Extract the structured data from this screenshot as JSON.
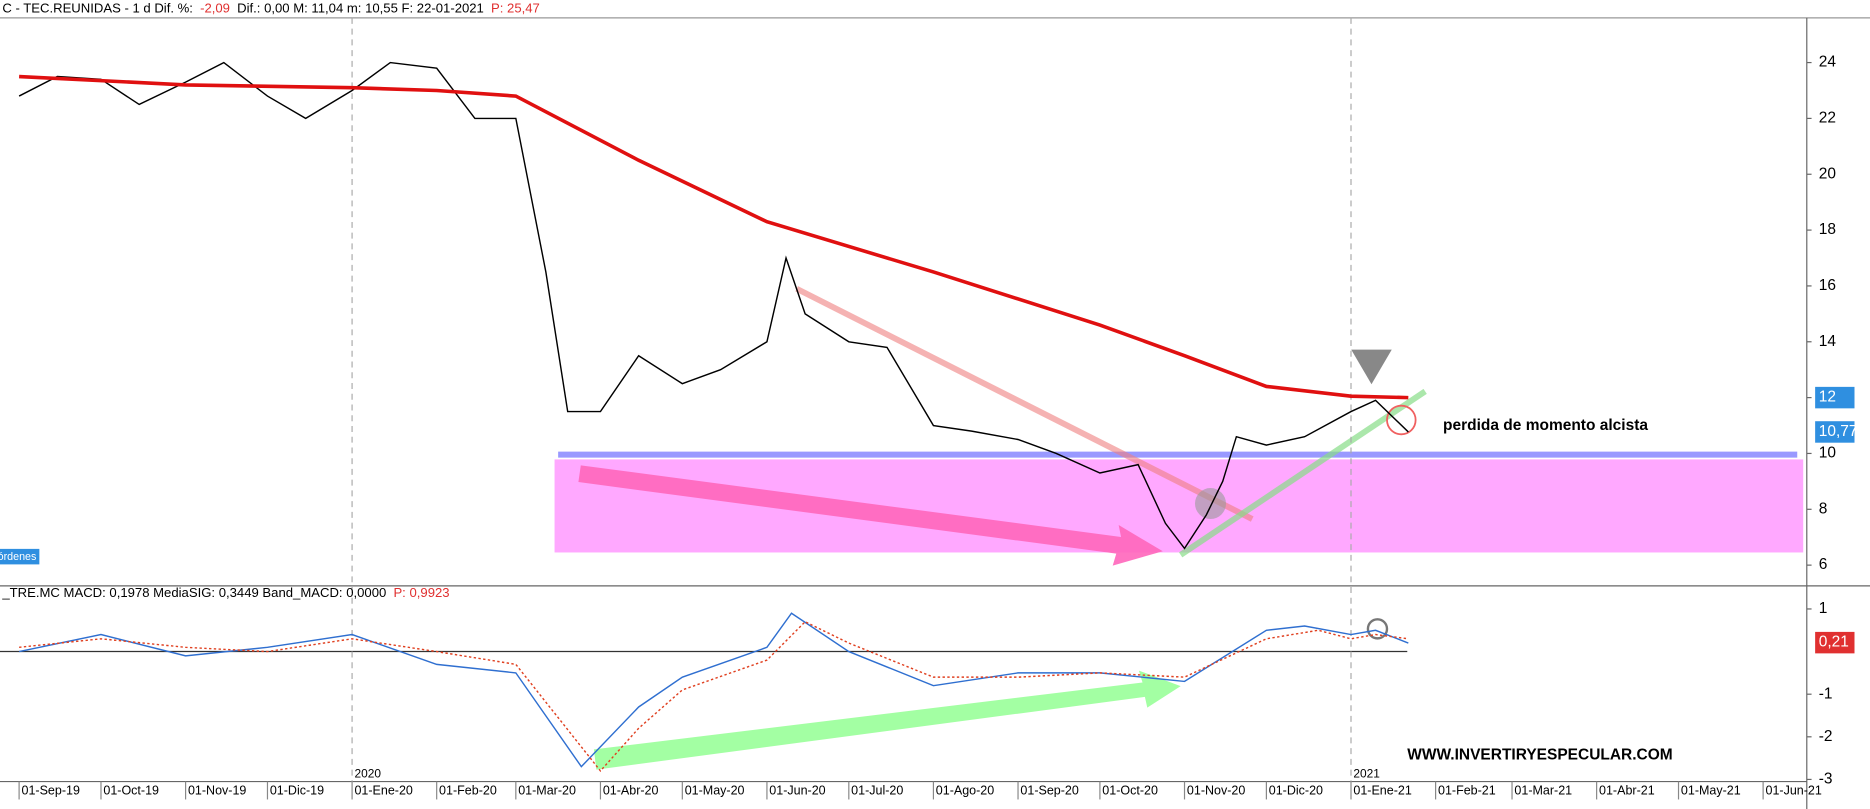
{
  "chart_data": [
    {
      "type": "line",
      "header": [
        {
          "text": "C - TEC.REUNIDAS -  1 d  Dif. %:",
          "color": "#000000"
        },
        {
          "text": "-2,09",
          "color": "#e03030"
        },
        {
          "text": "Dif.: 0,00  M: 11,04  m: 10,55  F: 22-01-2021",
          "color": "#000000"
        },
        {
          "text": "P: 25,47",
          "color": "#e03030"
        }
      ],
      "xlim": [
        "2019-08-25",
        "2021-06-17"
      ],
      "ylim": [
        5.3,
        25.6
      ],
      "yticks": [
        6,
        8,
        10,
        12,
        14,
        16,
        18,
        20,
        22,
        24
      ],
      "series": [
        {
          "color": "#000000",
          "x": [
            "2019-09-01",
            "2019-09-15",
            "2019-10-01",
            "2019-10-15",
            "2019-11-01",
            "2019-11-15",
            "2019-12-01",
            "2019-12-15",
            "2020-01-01",
            "2020-01-15",
            "2020-02-01",
            "2020-02-15",
            "2020-03-01",
            "2020-03-08",
            "2020-03-12",
            "2020-03-20",
            "2020-04-01",
            "2020-04-15",
            "2020-05-01",
            "2020-05-15",
            "2020-06-01",
            "2020-06-08",
            "2020-06-15",
            "2020-07-01",
            "2020-07-15",
            "2020-08-01",
            "2020-08-15",
            "2020-09-01",
            "2020-09-15",
            "2020-10-01",
            "2020-10-15",
            "2020-10-25",
            "2020-11-01",
            "2020-11-09",
            "2020-11-15",
            "2020-11-20",
            "2020-12-01",
            "2020-12-15",
            "2021-01-01",
            "2021-01-10",
            "2021-01-22"
          ],
          "values": [
            22.8,
            23.5,
            23.4,
            22.5,
            23.3,
            24.0,
            22.8,
            22.0,
            23.0,
            24.0,
            23.8,
            22.0,
            22.0,
            18.5,
            16.5,
            11.5,
            11.5,
            13.5,
            12.5,
            13.0,
            14.0,
            17.0,
            15.0,
            14.0,
            13.8,
            11.0,
            10.8,
            10.5,
            10.0,
            9.3,
            9.6,
            7.5,
            6.6,
            7.8,
            9.0,
            10.6,
            10.3,
            10.6,
            11.5,
            11.9,
            10.77
          ]
        },
        {
          "color": "#e01010",
          "x": [
            "2019-09-01",
            "2019-11-01",
            "2020-01-01",
            "2020-02-01",
            "2020-03-01",
            "2020-04-15",
            "2020-06-01",
            "2020-08-01",
            "2020-10-01",
            "2020-11-01",
            "2020-12-01",
            "2021-01-01",
            "2021-01-22"
          ],
          "values": [
            23.5,
            23.2,
            23.1,
            23.0,
            22.8,
            20.5,
            18.3,
            16.5,
            14.6,
            13.5,
            12.4,
            12.05,
            12.0
          ]
        }
      ],
      "price_labels": [
        {
          "value": 12,
          "label": "12",
          "color": "#2f8fe0"
        },
        {
          "value": 10.77,
          "label": "10,77",
          "color": "#2f8fe0"
        }
      ],
      "year_labels": [
        {
          "value": "2020-01-01",
          "label": "2020"
        },
        {
          "value": "2021-01-01",
          "label": "2021"
        }
      ],
      "annotation": "perdida de momento alcista",
      "tag": "órdenes"
    },
    {
      "type": "line",
      "header": [
        {
          "text": "_TRE.MC  MACD: 0,1978  MediaSIG: 0,3449  Band_MACD: 0,0000",
          "color": "#000000"
        },
        {
          "text": "P: 0,9923",
          "color": "#e03030"
        }
      ],
      "xlim": [
        "2019-08-25",
        "2021-06-17"
      ],
      "ylim": [
        -3.05,
        1.15
      ],
      "yticks": [
        -3,
        -2,
        -1,
        1
      ],
      "xticks": [
        {
          "value": "2019-09-01",
          "label": "01-Sep-19"
        },
        {
          "value": "2019-10-01",
          "label": "01-Oct-19"
        },
        {
          "value": "2019-11-01",
          "label": "01-Nov-19"
        },
        {
          "value": "2019-12-01",
          "label": "01-Dic-19"
        },
        {
          "value": "2020-01-01",
          "label": "01-Ene-20"
        },
        {
          "value": "2020-02-01",
          "label": "01-Feb-20"
        },
        {
          "value": "2020-03-01",
          "label": "01-Mar-20"
        },
        {
          "value": "2020-04-01",
          "label": "01-Abr-20"
        },
        {
          "value": "2020-05-01",
          "label": "01-May-20"
        },
        {
          "value": "2020-06-01",
          "label": "01-Jun-20"
        },
        {
          "value": "2020-07-01",
          "label": "01-Jul-20"
        },
        {
          "value": "2020-08-01",
          "label": "01-Ago-20"
        },
        {
          "value": "2020-09-01",
          "label": "01-Sep-20"
        },
        {
          "value": "2020-10-01",
          "label": "01-Oct-20"
        },
        {
          "value": "2020-11-01",
          "label": "01-Nov-20"
        },
        {
          "value": "2020-12-01",
          "label": "01-Dic-20"
        },
        {
          "value": "2021-01-01",
          "label": "01-Ene-21"
        },
        {
          "value": "2021-02-01",
          "label": "01-Feb-21"
        },
        {
          "value": "2021-03-01",
          "label": "01-Mar-21"
        },
        {
          "value": "2021-04-01",
          "label": "01-Abr-21"
        },
        {
          "value": "2021-05-01",
          "label": "01-May-21"
        },
        {
          "value": "2021-06-01",
          "label": "01-Jun-21"
        }
      ],
      "series": [
        {
          "color": "#2f6fd0",
          "dash": false,
          "x": [
            "2019-09-01",
            "2019-10-01",
            "2019-11-01",
            "2019-12-01",
            "2020-01-01",
            "2020-02-01",
            "2020-03-01",
            "2020-03-25",
            "2020-04-15",
            "2020-05-01",
            "2020-06-01",
            "2020-06-10",
            "2020-07-01",
            "2020-08-01",
            "2020-09-01",
            "2020-10-01",
            "2020-11-01",
            "2020-12-01",
            "2020-12-15",
            "2021-01-01",
            "2021-01-10",
            "2021-01-22"
          ],
          "values": [
            0.0,
            0.4,
            -0.1,
            0.1,
            0.4,
            -0.3,
            -0.5,
            -2.7,
            -1.3,
            -0.6,
            0.1,
            0.9,
            0.0,
            -0.8,
            -0.5,
            -0.5,
            -0.7,
            0.5,
            0.6,
            0.4,
            0.5,
            0.2
          ]
        },
        {
          "color": "#e04020",
          "dash": true,
          "x": [
            "2019-09-01",
            "2019-10-01",
            "2019-11-01",
            "2019-12-01",
            "2020-01-01",
            "2020-02-01",
            "2020-03-01",
            "2020-04-01",
            "2020-04-15",
            "2020-05-01",
            "2020-06-01",
            "2020-06-15",
            "2020-07-01",
            "2020-08-01",
            "2020-09-01",
            "2020-10-01",
            "2020-11-01",
            "2020-12-01",
            "2020-12-20",
            "2021-01-01",
            "2021-01-10",
            "2021-01-22"
          ],
          "values": [
            0.1,
            0.3,
            0.1,
            0.0,
            0.3,
            0.0,
            -0.3,
            -2.8,
            -1.8,
            -0.9,
            -0.2,
            0.7,
            0.2,
            -0.6,
            -0.6,
            -0.5,
            -0.6,
            0.3,
            0.5,
            0.3,
            0.4,
            0.3
          ]
        }
      ],
      "price_labels": [
        {
          "value": 0.21,
          "label": "0,21",
          "color": "#e03030"
        }
      ],
      "annotation": "WWW.INVERTIRYESPECULAR.COM"
    }
  ]
}
